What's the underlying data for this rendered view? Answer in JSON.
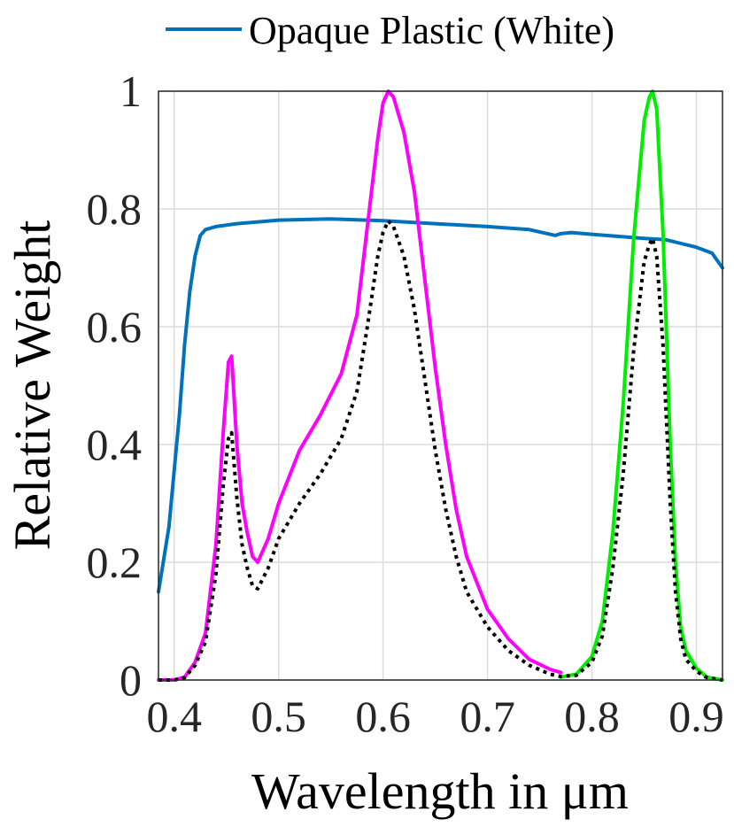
{
  "chart_data": {
    "type": "line",
    "title": "",
    "xlabel": "Wavelength in μm",
    "ylabel": "Relative Weight",
    "xlim": [
      0.385,
      0.925
    ],
    "ylim": [
      0,
      1
    ],
    "xticks": [
      0.4,
      0.5,
      0.6,
      0.7,
      0.8,
      0.9
    ],
    "xtick_labels": [
      "0.4",
      "0.5",
      "0.6",
      "0.7",
      "0.8",
      "0.9"
    ],
    "yticks": [
      0,
      0.2,
      0.4,
      0.6,
      0.8,
      1
    ],
    "ytick_labels": [
      "0",
      "0.2",
      "0.4",
      "0.6",
      "0.8",
      "1"
    ],
    "grid": true,
    "legend": {
      "placement": "top",
      "entries": [
        "Opaque Plastic (White)"
      ]
    },
    "series": [
      {
        "name": "Opaque Plastic (White)",
        "color": "#0072BD",
        "style": "solid",
        "x": [
          0.385,
          0.395,
          0.405,
          0.41,
          0.415,
          0.42,
          0.425,
          0.43,
          0.44,
          0.46,
          0.5,
          0.55,
          0.6,
          0.65,
          0.7,
          0.74,
          0.765,
          0.77,
          0.78,
          0.8,
          0.85,
          0.87,
          0.9,
          0.915,
          0.925
        ],
        "y": [
          0.15,
          0.26,
          0.45,
          0.57,
          0.66,
          0.72,
          0.755,
          0.765,
          0.77,
          0.775,
          0.781,
          0.783,
          0.78,
          0.775,
          0.77,
          0.765,
          0.755,
          0.758,
          0.76,
          0.757,
          0.75,
          0.748,
          0.735,
          0.725,
          0.7
        ]
      },
      {
        "color": "#FF00FF",
        "style": "solid",
        "x": [
          0.385,
          0.4,
          0.41,
          0.42,
          0.43,
          0.44,
          0.447,
          0.452,
          0.455,
          0.46,
          0.465,
          0.47,
          0.475,
          0.48,
          0.49,
          0.5,
          0.52,
          0.54,
          0.56,
          0.575,
          0.585,
          0.595,
          0.6,
          0.605,
          0.61,
          0.62,
          0.63,
          0.64,
          0.65,
          0.66,
          0.67,
          0.68,
          0.7,
          0.72,
          0.74,
          0.76,
          0.77
        ],
        "y": [
          0.0,
          0.0,
          0.005,
          0.03,
          0.08,
          0.23,
          0.42,
          0.54,
          0.55,
          0.4,
          0.3,
          0.25,
          0.21,
          0.2,
          0.24,
          0.3,
          0.39,
          0.45,
          0.52,
          0.62,
          0.77,
          0.92,
          0.98,
          1.0,
          0.99,
          0.93,
          0.83,
          0.68,
          0.53,
          0.4,
          0.29,
          0.21,
          0.12,
          0.07,
          0.035,
          0.018,
          0.013
        ]
      },
      {
        "color": "#00EE00",
        "style": "solid",
        "x": [
          0.77,
          0.785,
          0.8,
          0.81,
          0.82,
          0.83,
          0.84,
          0.85,
          0.855,
          0.858,
          0.862,
          0.868,
          0.875,
          0.88,
          0.885,
          0.89,
          0.9,
          0.91,
          0.925
        ],
        "y": [
          0.005,
          0.01,
          0.04,
          0.1,
          0.25,
          0.47,
          0.75,
          0.95,
          0.99,
          1.0,
          0.97,
          0.76,
          0.4,
          0.2,
          0.09,
          0.05,
          0.02,
          0.005,
          0.0
        ]
      },
      {
        "color": "#000000",
        "style": "dotted",
        "x": [
          0.385,
          0.4,
          0.41,
          0.42,
          0.43,
          0.44,
          0.447,
          0.452,
          0.455,
          0.46,
          0.465,
          0.47,
          0.475,
          0.48,
          0.49,
          0.5,
          0.52,
          0.54,
          0.56,
          0.575,
          0.585,
          0.595,
          0.6,
          0.605,
          0.61,
          0.62,
          0.63,
          0.64,
          0.65,
          0.66,
          0.67,
          0.68,
          0.7,
          0.72,
          0.74,
          0.76,
          0.77,
          0.785,
          0.8,
          0.81,
          0.82,
          0.83,
          0.84,
          0.85,
          0.855,
          0.858,
          0.862,
          0.868,
          0.875,
          0.88,
          0.885,
          0.89,
          0.9,
          0.91,
          0.925
        ],
        "y": [
          0.0,
          0.0,
          0.004,
          0.025,
          0.065,
          0.18,
          0.33,
          0.41,
          0.42,
          0.31,
          0.23,
          0.19,
          0.16,
          0.155,
          0.19,
          0.24,
          0.3,
          0.35,
          0.41,
          0.49,
          0.6,
          0.72,
          0.76,
          0.78,
          0.77,
          0.72,
          0.63,
          0.51,
          0.39,
          0.29,
          0.21,
          0.15,
          0.09,
          0.05,
          0.025,
          0.01,
          0.006,
          0.008,
          0.03,
          0.075,
          0.19,
          0.35,
          0.56,
          0.71,
          0.74,
          0.75,
          0.72,
          0.57,
          0.3,
          0.15,
          0.07,
          0.035,
          0.015,
          0.004,
          0.0
        ]
      }
    ]
  }
}
